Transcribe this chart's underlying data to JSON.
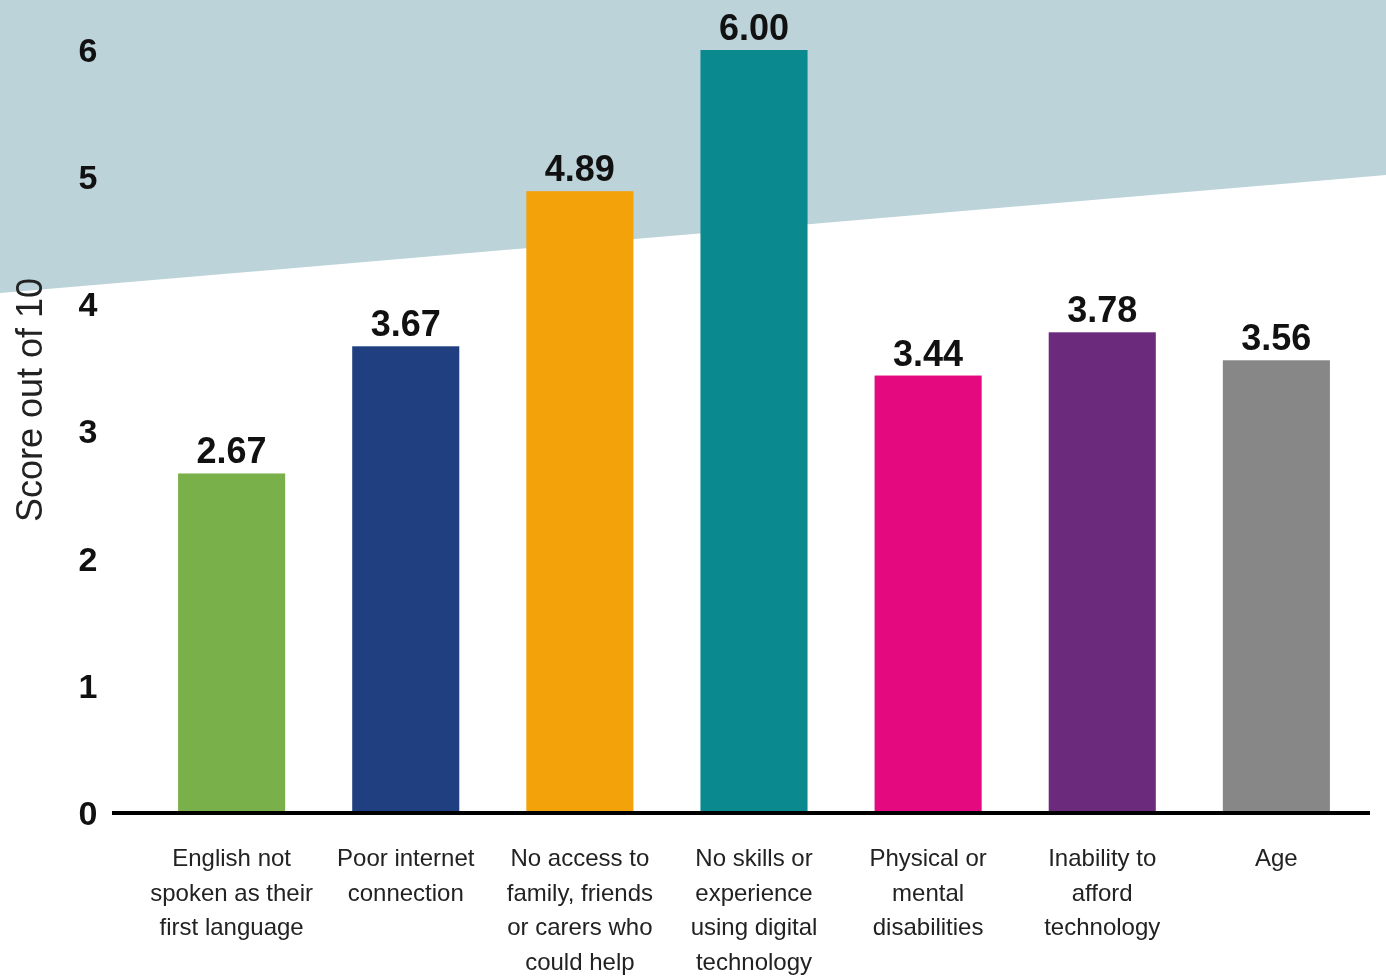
{
  "chart_data": {
    "type": "bar",
    "ylabel": "Score out of 10",
    "categories": [
      "English not spoken as their first language",
      "Poor internet connection",
      "No access to family, friends or carers who could help",
      "No skills or experience using digital technology",
      "Physical or mental disabilities",
      "Inability to afford technology",
      "Age"
    ],
    "values": [
      2.67,
      3.67,
      4.89,
      6.0,
      3.44,
      3.78,
      3.56
    ],
    "value_labels": [
      "2.67",
      "3.67",
      "4.89",
      "6.00",
      "3.44",
      "3.78",
      "3.56"
    ],
    "colors": [
      "#7ab04a",
      "#203f80",
      "#f4a20a",
      "#0a8a8f",
      "#e5097f",
      "#6c2a7c",
      "#878787"
    ],
    "ylim": [
      0,
      6
    ],
    "yticks": [
      0,
      1,
      2,
      3,
      4,
      5,
      6
    ],
    "grid": false
  }
}
